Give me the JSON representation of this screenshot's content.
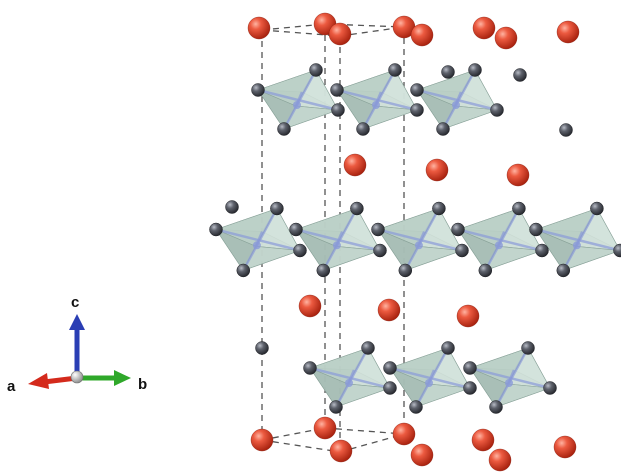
{
  "axes": {
    "a_label": "a",
    "b_label": "b",
    "c_label": "c",
    "a_color": "#d42a1c",
    "b_color": "#2fa82a",
    "c_color": "#2a3eb4",
    "origin_color": "#c8c8c8"
  },
  "atoms": {
    "cation_color": "#e04a33",
    "anion_color": "#5a5d66",
    "octahedron_center_color": "#8a9ad8",
    "octahedron_face_color": "#b9d0c6"
  },
  "cell": {
    "edge_style": "dashed",
    "edge_color": "#555555"
  }
}
